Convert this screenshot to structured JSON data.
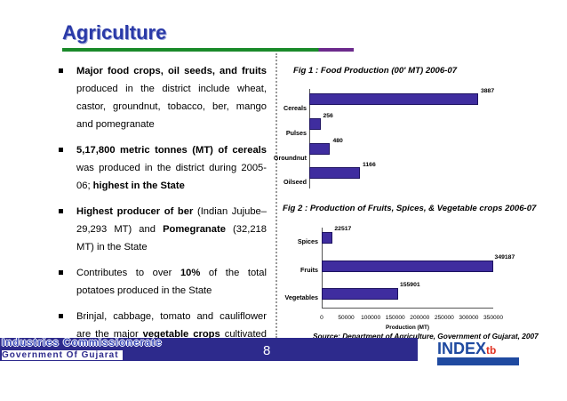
{
  "slide": {
    "title": "Agriculture",
    "page_number": "8"
  },
  "bullets": [
    {
      "parts": [
        {
          "t": "Major food crops, oil seeds, and fruits",
          "b": true
        },
        {
          "t": " produced in the district include wheat, castor, groundnut, tobacco, ber, mango and pomegranate",
          "b": false
        }
      ]
    },
    {
      "parts": [
        {
          "t": "5,17,800 metric tonnes (MT) of cereals",
          "b": true
        },
        {
          "t": " was produced in the district during 2005-06; ",
          "b": false
        },
        {
          "t": "highest in the State",
          "b": true
        }
      ]
    },
    {
      "parts": [
        {
          "t": "Highest producer of ber",
          "b": true
        },
        {
          "t": " (Indian Jujube– 29,293 MT) and ",
          "b": false
        },
        {
          "t": "Pomegranate",
          "b": true
        },
        {
          "t": " (32,218 MT) in the State",
          "b": false
        }
      ]
    },
    {
      "parts": [
        {
          "t": "Contributes to over ",
          "b": false
        },
        {
          "t": "10%",
          "b": true
        },
        {
          "t": " of the total potatoes produced in the State",
          "b": false
        }
      ]
    },
    {
      "parts": [
        {
          "t": "Brinjal, cabbage, tomato and cauliflower are the major ",
          "b": false
        },
        {
          "t": "vegetable crops",
          "b": true
        },
        {
          "t": " cultivated in the district",
          "b": false
        }
      ]
    }
  ],
  "chart_data": [
    {
      "type": "bar",
      "orientation": "horizontal",
      "title": "Fig 1 : Food  Production (00' MT) 2006-07",
      "categories": [
        "Cereals",
        "Pulses",
        "Groundnut",
        "Oilseed"
      ],
      "values": [
        3887,
        256,
        480,
        1166
      ],
      "value_labels": [
        "3887",
        "256",
        "480",
        "1166"
      ],
      "xlim": [
        0,
        3887
      ],
      "color": "#3f2d9f"
    },
    {
      "type": "bar",
      "orientation": "horizontal",
      "title": "Fig 2 : Production of Fruits, Spices, & Vegetable crops 2006-07",
      "categories": [
        "Spices",
        "Fruits",
        "Vegetables"
      ],
      "values": [
        22517,
        349187,
        155901
      ],
      "value_labels": [
        "22517",
        "349187",
        "155901"
      ],
      "xlim": [
        0,
        350000
      ],
      "ticks": [
        0,
        50000,
        100000,
        150000,
        200000,
        250000,
        300000,
        350000
      ],
      "tick_labels": [
        "0",
        "50000",
        "100000",
        "150000",
        "200000",
        "250000",
        "300000",
        "350000"
      ],
      "xlabel": "Production (MT)",
      "color": "#3f2d9f"
    }
  ],
  "source": "Source: Department of Agriculture, Government of Gujarat, 2007",
  "footer": {
    "org": "Industries Commissionerate",
    "gov": "Government Of Gujarat",
    "logo": {
      "main": "INDEX",
      "suffix": "tb"
    }
  }
}
